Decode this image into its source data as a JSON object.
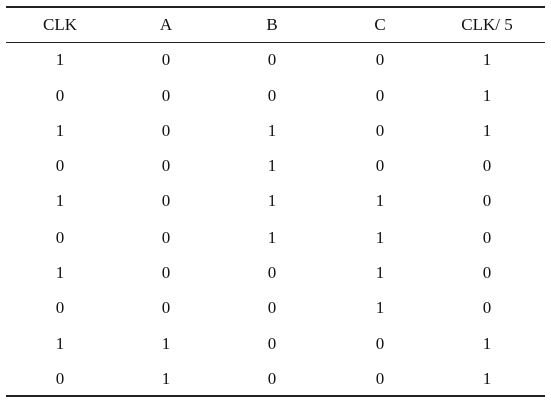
{
  "table": {
    "header": [
      "CLK",
      "A",
      "B",
      "C",
      "CLK/ 5"
    ],
    "rows": [
      [
        1,
        0,
        0,
        0,
        1
      ],
      [
        0,
        0,
        0,
        0,
        1
      ],
      [
        1,
        0,
        1,
        0,
        1
      ],
      [
        0,
        0,
        1,
        0,
        0
      ],
      [
        1,
        0,
        1,
        1,
        0
      ],
      [
        0,
        0,
        1,
        1,
        0
      ],
      [
        1,
        0,
        0,
        1,
        0
      ],
      [
        0,
        0,
        0,
        1,
        0
      ],
      [
        1,
        1,
        0,
        0,
        1
      ],
      [
        0,
        1,
        0,
        0,
        1
      ]
    ]
  }
}
